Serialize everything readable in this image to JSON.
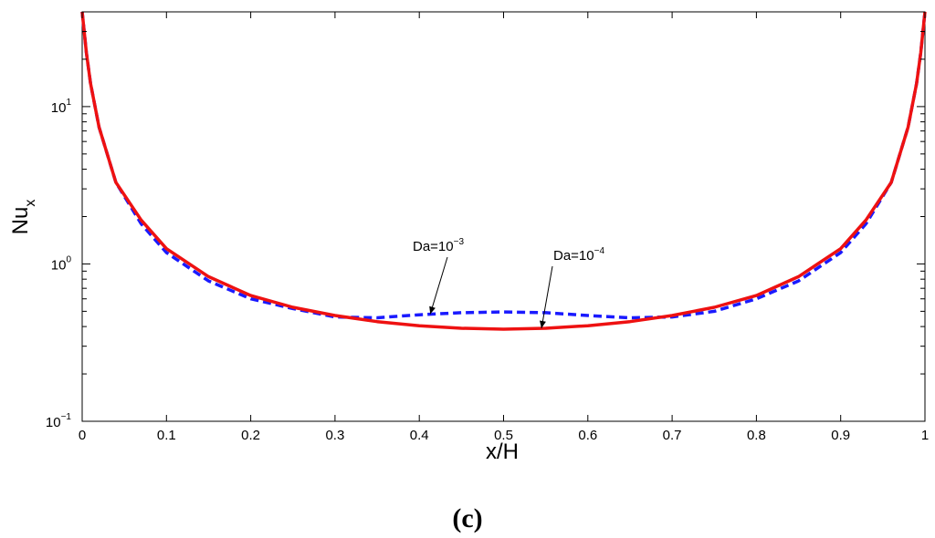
{
  "chart_data": {
    "type": "line",
    "yscale": "log",
    "xlabel": "x/H",
    "ylabel": {
      "base": "Nu",
      "subscript": "x"
    },
    "xlim": [
      0,
      1
    ],
    "ylim": [
      0.1,
      40
    ],
    "x_ticks": [
      "0",
      "0.1",
      "0.2",
      "0.3",
      "0.4",
      "0.5",
      "0.6",
      "0.7",
      "0.8",
      "0.9",
      "1"
    ],
    "y_ticks": [
      {
        "value": 0.1,
        "base": "10",
        "exp": "−1"
      },
      {
        "value": 1,
        "base": "10",
        "exp": "0"
      },
      {
        "value": 10,
        "base": "10",
        "exp": "1"
      }
    ],
    "x_tick_values": [
      0,
      0.1,
      0.2,
      0.3,
      0.4,
      0.5,
      0.6,
      0.7,
      0.8,
      0.9,
      1
    ],
    "series": [
      {
        "name": "Da=10^-3",
        "style": "dashed",
        "color": "#1a1aff",
        "x": [
          0.0,
          0.005,
          0.01,
          0.02,
          0.04,
          0.07,
          0.1,
          0.15,
          0.2,
          0.25,
          0.3,
          0.35,
          0.4,
          0.45,
          0.5,
          0.55,
          0.6,
          0.65,
          0.7,
          0.75,
          0.8,
          0.85,
          0.9,
          0.93,
          0.96,
          0.98,
          0.99,
          0.995,
          1.0
        ],
        "y": [
          40,
          22,
          14,
          7.4,
          3.3,
          1.8,
          1.18,
          0.78,
          0.6,
          0.52,
          0.46,
          0.455,
          0.475,
          0.49,
          0.495,
          0.49,
          0.47,
          0.455,
          0.46,
          0.5,
          0.6,
          0.78,
          1.18,
          1.8,
          3.3,
          7.4,
          14,
          22,
          40
        ]
      },
      {
        "name": "Da=10^-4",
        "style": "solid",
        "color": "#ee1111",
        "x": [
          0.0,
          0.005,
          0.01,
          0.02,
          0.04,
          0.07,
          0.1,
          0.15,
          0.2,
          0.25,
          0.3,
          0.35,
          0.4,
          0.45,
          0.5,
          0.55,
          0.6,
          0.65,
          0.7,
          0.75,
          0.8,
          0.85,
          0.9,
          0.93,
          0.96,
          0.98,
          0.99,
          0.995,
          1.0
        ],
        "y": [
          40,
          22,
          14,
          7.4,
          3.3,
          1.9,
          1.25,
          0.83,
          0.63,
          0.53,
          0.47,
          0.43,
          0.405,
          0.39,
          0.385,
          0.39,
          0.405,
          0.43,
          0.47,
          0.53,
          0.63,
          0.83,
          1.25,
          1.9,
          3.3,
          7.4,
          14,
          22,
          40
        ]
      }
    ],
    "annotations": [
      {
        "base": "Da=10",
        "exp": "−3",
        "points_to": {
          "x": 0.413,
          "y": 0.48
        }
      },
      {
        "base": "Da=10",
        "exp": "−4",
        "points_to": {
          "x": 0.545,
          "y": 0.39
        }
      }
    ],
    "panel_label": "(c)"
  }
}
